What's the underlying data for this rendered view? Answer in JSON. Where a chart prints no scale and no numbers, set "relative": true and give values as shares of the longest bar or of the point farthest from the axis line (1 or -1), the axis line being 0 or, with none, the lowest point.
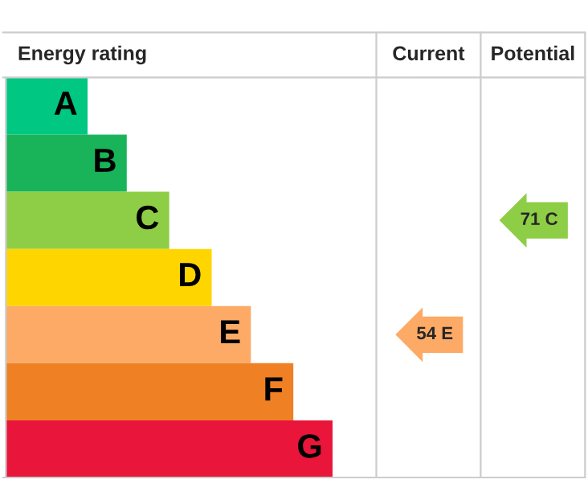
{
  "chart_data": {
    "type": "bar",
    "orientation": "horizontal",
    "relative": true,
    "title": "Energy rating",
    "categories": [
      "A",
      "B",
      "C",
      "D",
      "E",
      "F",
      "G"
    ],
    "values": [
      0.25,
      0.37,
      0.5,
      0.63,
      0.75,
      0.88,
      1
    ],
    "colors": [
      "#00c781",
      "#19b459",
      "#8dce46",
      "#ffd500",
      "#fcaa65",
      "#ef8023",
      "#e9153b"
    ],
    "annotations": [
      "Current",
      "Potential",
      "54 E",
      "71 C"
    ]
  }
}
